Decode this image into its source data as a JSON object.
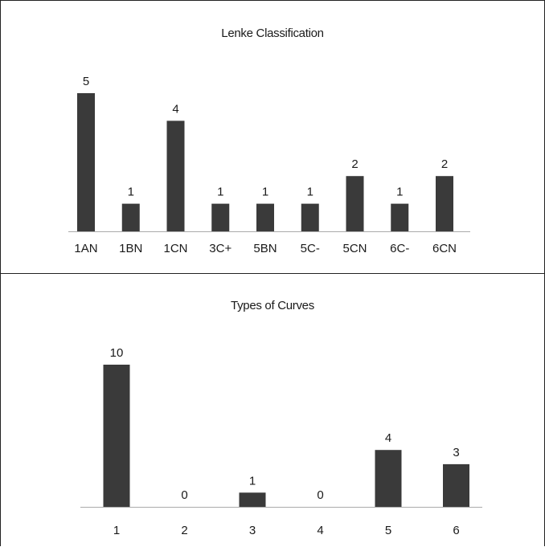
{
  "chart_data": [
    {
      "type": "bar",
      "title": "Lenke Classification",
      "categories": [
        "1AN",
        "1BN",
        "1CN",
        "3C+",
        "5BN",
        "5C-",
        "5CN",
        "6C-",
        "6CN"
      ],
      "values": [
        5,
        1,
        4,
        1,
        1,
        1,
        2,
        1,
        2
      ],
      "xlabel": "",
      "ylabel": "",
      "ylim": [
        0,
        5
      ],
      "grid": false,
      "data_labels": true,
      "bar_color": "#3a3a3a",
      "axis_color": "#aaaaaa"
    },
    {
      "type": "bar",
      "title": "Types of Curves",
      "categories": [
        "1",
        "2",
        "3",
        "4",
        "5",
        "6"
      ],
      "values": [
        10,
        0,
        1,
        0,
        4,
        3
      ],
      "xlabel": "",
      "ylabel": "",
      "ylim": [
        0,
        10
      ],
      "grid": false,
      "data_labels": true,
      "bar_color": "#3a3a3a",
      "axis_color": "#aaaaaa"
    }
  ]
}
